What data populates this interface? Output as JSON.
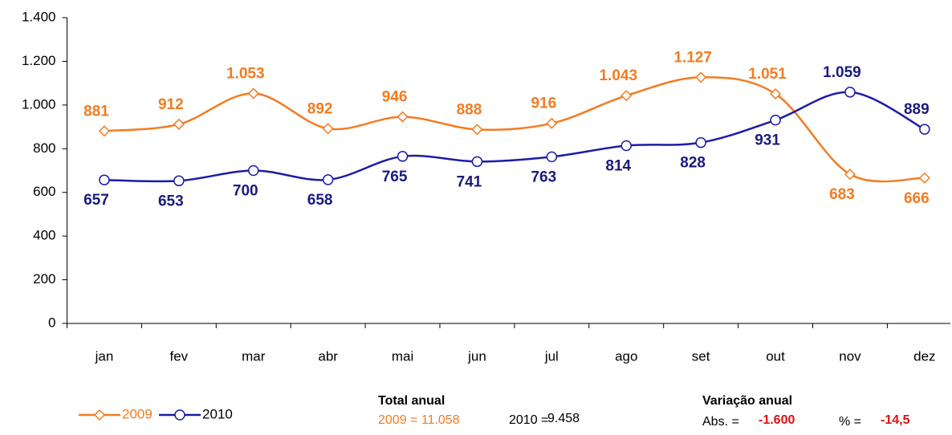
{
  "chart_data": {
    "type": "line",
    "categories": [
      "jan",
      "fev",
      "mar",
      "abr",
      "mai",
      "jun",
      "jul",
      "ago",
      "set",
      "out",
      "nov",
      "dez"
    ],
    "series": [
      {
        "name": "2009",
        "color": "#f47b20",
        "marker": "diamond",
        "values": [
          881,
          912,
          1053,
          892,
          946,
          888,
          916,
          1043,
          1127,
          1051,
          683,
          666
        ],
        "value_labels": [
          "881",
          "912",
          "1.053",
          "892",
          "946",
          "888",
          "916",
          "1.043",
          "1.127",
          "1.051",
          "683",
          "666"
        ]
      },
      {
        "name": "2010",
        "color": "#1c1ca8",
        "marker": "circle",
        "values": [
          657,
          653,
          700,
          658,
          765,
          741,
          763,
          814,
          828,
          931,
          1059,
          889
        ],
        "value_labels": [
          "657",
          "653",
          "700",
          "658",
          "765",
          "741",
          "763",
          "814",
          "828",
          "931",
          "1.059",
          "889"
        ]
      }
    ],
    "ylim": [
      0,
      1400
    ],
    "yticks": [
      0,
      200,
      400,
      600,
      800,
      {
        "value": 1000,
        "label": "1.000"
      },
      {
        "value": 1200,
        "label": "1.200"
      },
      {
        "value": 1400,
        "label": "1.400"
      }
    ],
    "grid": false,
    "legend": "bottom-left",
    "annotations": {
      "total_title": "Total anual",
      "total_2009": "2009 = 11.058",
      "total_2010_label": "2010 =",
      "total_2010_value": "9.458",
      "var_title": "Variação anual",
      "abs_label": "Abs. =",
      "abs_value": "-1.600",
      "pct_label": "% =",
      "pct_value": "-14,5"
    }
  }
}
